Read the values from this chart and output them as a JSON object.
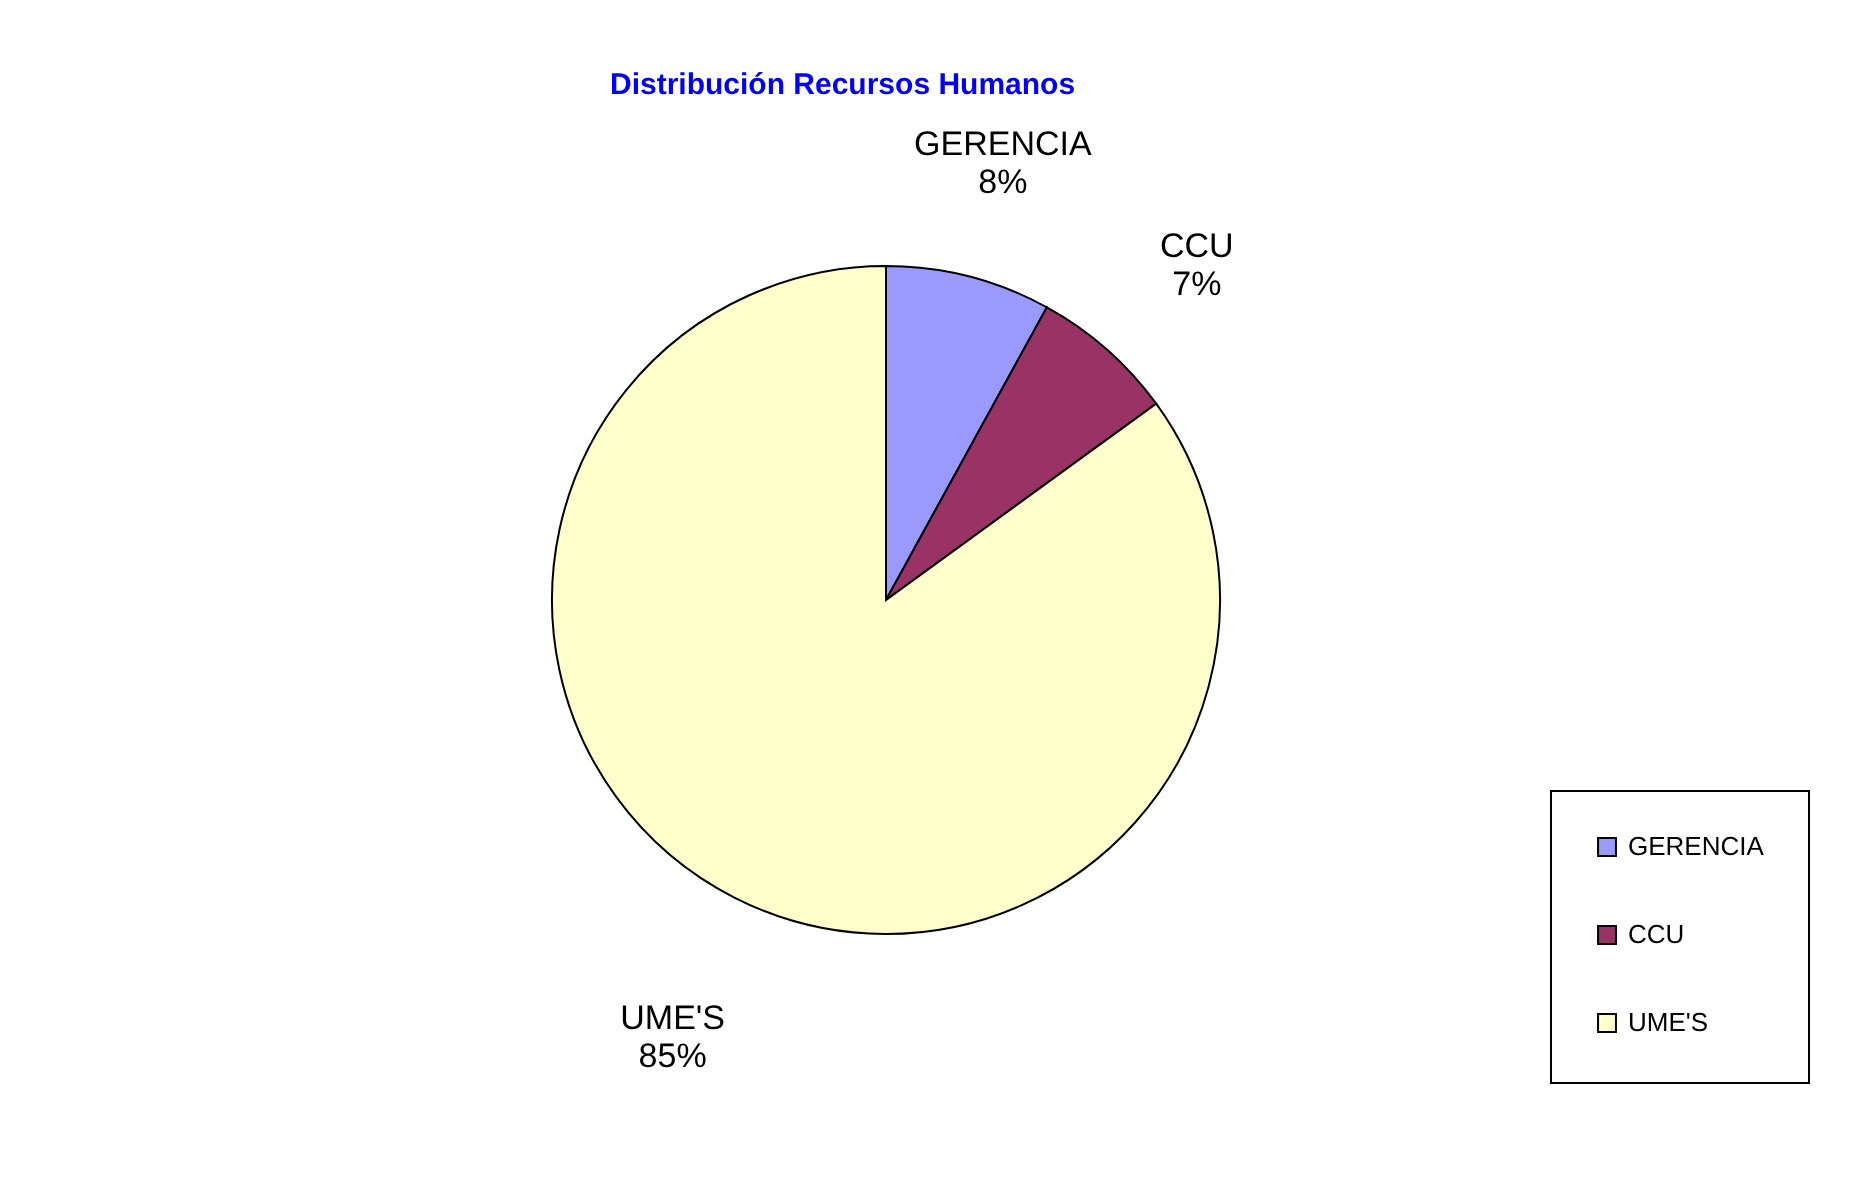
{
  "chart_data": {
    "type": "pie",
    "title": "Distribución Recursos Humanos",
    "categories": [
      "GERENCIA",
      "CCU",
      "UME'S"
    ],
    "values": [
      8,
      7,
      85
    ],
    "colors": [
      "#9999ff",
      "#993366",
      "#ffffcc"
    ],
    "value_labels": [
      "8%",
      "7%",
      "85%"
    ],
    "legend": "bottom right"
  }
}
